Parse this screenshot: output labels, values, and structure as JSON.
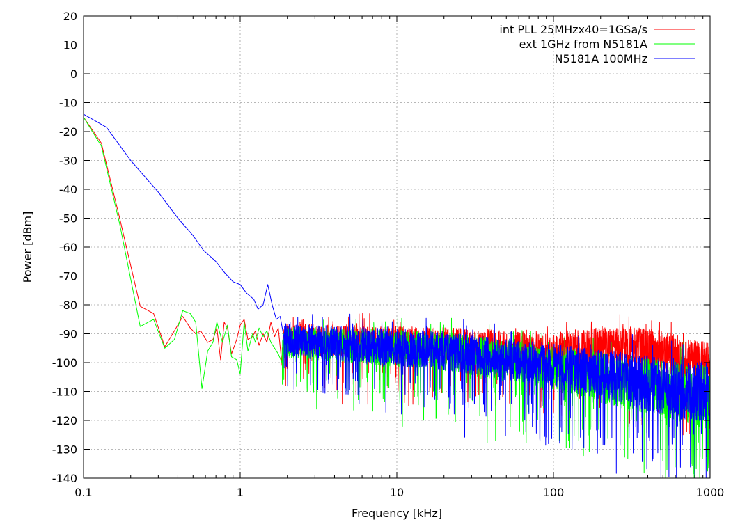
{
  "chart_data": {
    "type": "line",
    "title": "",
    "xlabel": "Frequency [kHz]",
    "ylabel": "Power [dBm]",
    "x_scale": "log",
    "xlim": [
      0.1,
      1000
    ],
    "ylim": [
      -140,
      20
    ],
    "grid": true,
    "legend_position": "top-right",
    "x_ticks": [
      {
        "value": 0.1,
        "label": "0.1"
      },
      {
        "value": 1,
        "label": "1"
      },
      {
        "value": 10,
        "label": "10"
      },
      {
        "value": 100,
        "label": "100"
      },
      {
        "value": 1000,
        "label": "1000"
      }
    ],
    "y_ticks": [
      {
        "value": 20,
        "label": "20"
      },
      {
        "value": 10,
        "label": "10"
      },
      {
        "value": 0,
        "label": "0"
      },
      {
        "value": -10,
        "label": "-10"
      },
      {
        "value": -20,
        "label": "-20"
      },
      {
        "value": -30,
        "label": "-30"
      },
      {
        "value": -40,
        "label": "-40"
      },
      {
        "value": -50,
        "label": "-50"
      },
      {
        "value": -60,
        "label": "-60"
      },
      {
        "value": -70,
        "label": "-70"
      },
      {
        "value": -80,
        "label": "-80"
      },
      {
        "value": -90,
        "label": "-90"
      },
      {
        "value": -100,
        "label": "-100"
      },
      {
        "value": -110,
        "label": "-110"
      },
      {
        "value": -120,
        "label": "-120"
      },
      {
        "value": -130,
        "label": "-130"
      },
      {
        "value": -140,
        "label": "-140"
      }
    ],
    "series": [
      {
        "name": "int PLL 25MHzx40=1GSa/s",
        "color": "#ff0000",
        "noise_floor": [
          [
            2,
            -92
          ],
          [
            20,
            -94
          ],
          [
            100,
            -96
          ],
          [
            250,
            -94
          ],
          [
            600,
            -97
          ],
          [
            1000,
            -101
          ]
        ],
        "noise_spread": [
          [
            2,
            10
          ],
          [
            100,
            12
          ],
          [
            1000,
            14
          ]
        ],
        "points": [
          [
            0.1,
            -15
          ],
          [
            0.13,
            -24
          ],
          [
            0.17,
            -50
          ],
          [
            0.23,
            -80.5
          ],
          [
            0.28,
            -83
          ],
          [
            0.33,
            -94.5
          ],
          [
            0.38,
            -89
          ],
          [
            0.43,
            -84
          ],
          [
            0.48,
            -88
          ],
          [
            0.52,
            -90
          ],
          [
            0.56,
            -89
          ],
          [
            0.62,
            -93
          ],
          [
            0.67,
            -92
          ],
          [
            0.71,
            -88
          ],
          [
            0.75,
            -99
          ],
          [
            0.79,
            -86
          ],
          [
            0.83,
            -88
          ],
          [
            0.88,
            -97
          ],
          [
            0.95,
            -92
          ],
          [
            1.0,
            -87
          ],
          [
            1.06,
            -85
          ],
          [
            1.12,
            -92
          ],
          [
            1.2,
            -91
          ],
          [
            1.25,
            -89
          ],
          [
            1.32,
            -94
          ],
          [
            1.4,
            -90
          ],
          [
            1.48,
            -93
          ],
          [
            1.57,
            -86
          ],
          [
            1.66,
            -91
          ],
          [
            1.75,
            -88
          ],
          [
            1.85,
            -101
          ]
        ]
      },
      {
        "name": "ext 1GHz from N5181A",
        "color": "#00ff00",
        "noise_floor": [
          [
            2,
            -93
          ],
          [
            20,
            -96
          ],
          [
            100,
            -102
          ],
          [
            300,
            -107
          ],
          [
            1000,
            -112
          ]
        ],
        "noise_spread": [
          [
            2,
            10
          ],
          [
            100,
            14
          ],
          [
            1000,
            20
          ]
        ],
        "points": [
          [
            0.1,
            -15
          ],
          [
            0.13,
            -25
          ],
          [
            0.17,
            -52
          ],
          [
            0.23,
            -87.5
          ],
          [
            0.28,
            -85
          ],
          [
            0.33,
            -95
          ],
          [
            0.38,
            -92
          ],
          [
            0.43,
            -82
          ],
          [
            0.48,
            -83
          ],
          [
            0.52,
            -86
          ],
          [
            0.57,
            -109
          ],
          [
            0.62,
            -96
          ],
          [
            0.67,
            -93
          ],
          [
            0.71,
            -86
          ],
          [
            0.77,
            -93
          ],
          [
            0.83,
            -87
          ],
          [
            0.88,
            -98
          ],
          [
            0.95,
            -99
          ],
          [
            1.0,
            -104
          ],
          [
            1.06,
            -86
          ],
          [
            1.12,
            -96
          ],
          [
            1.2,
            -90
          ],
          [
            1.25,
            -93
          ],
          [
            1.32,
            -88
          ],
          [
            1.4,
            -91
          ],
          [
            1.48,
            -89
          ],
          [
            1.57,
            -93
          ],
          [
            1.66,
            -95
          ],
          [
            1.75,
            -97
          ],
          [
            1.85,
            -100
          ]
        ]
      },
      {
        "name": "N5181A 100MHz",
        "color": "#0000ff",
        "noise_floor": [
          [
            2,
            -92
          ],
          [
            20,
            -96
          ],
          [
            100,
            -101
          ],
          [
            300,
            -106
          ],
          [
            1000,
            -111
          ]
        ],
        "noise_spread": [
          [
            2,
            10
          ],
          [
            100,
            14
          ],
          [
            1000,
            20
          ]
        ],
        "points": [
          [
            0.1,
            -14
          ],
          [
            0.14,
            -18.5
          ],
          [
            0.2,
            -30
          ],
          [
            0.3,
            -41
          ],
          [
            0.4,
            -50
          ],
          [
            0.5,
            -56
          ],
          [
            0.58,
            -61
          ],
          [
            0.7,
            -65
          ],
          [
            0.8,
            -69
          ],
          [
            0.9,
            -72
          ],
          [
            1.0,
            -73
          ],
          [
            1.1,
            -76
          ],
          [
            1.22,
            -78
          ],
          [
            1.3,
            -81.5
          ],
          [
            1.4,
            -80
          ],
          [
            1.5,
            -73
          ],
          [
            1.6,
            -80
          ],
          [
            1.7,
            -85
          ],
          [
            1.8,
            -84
          ],
          [
            1.9,
            -91
          ]
        ]
      }
    ]
  }
}
